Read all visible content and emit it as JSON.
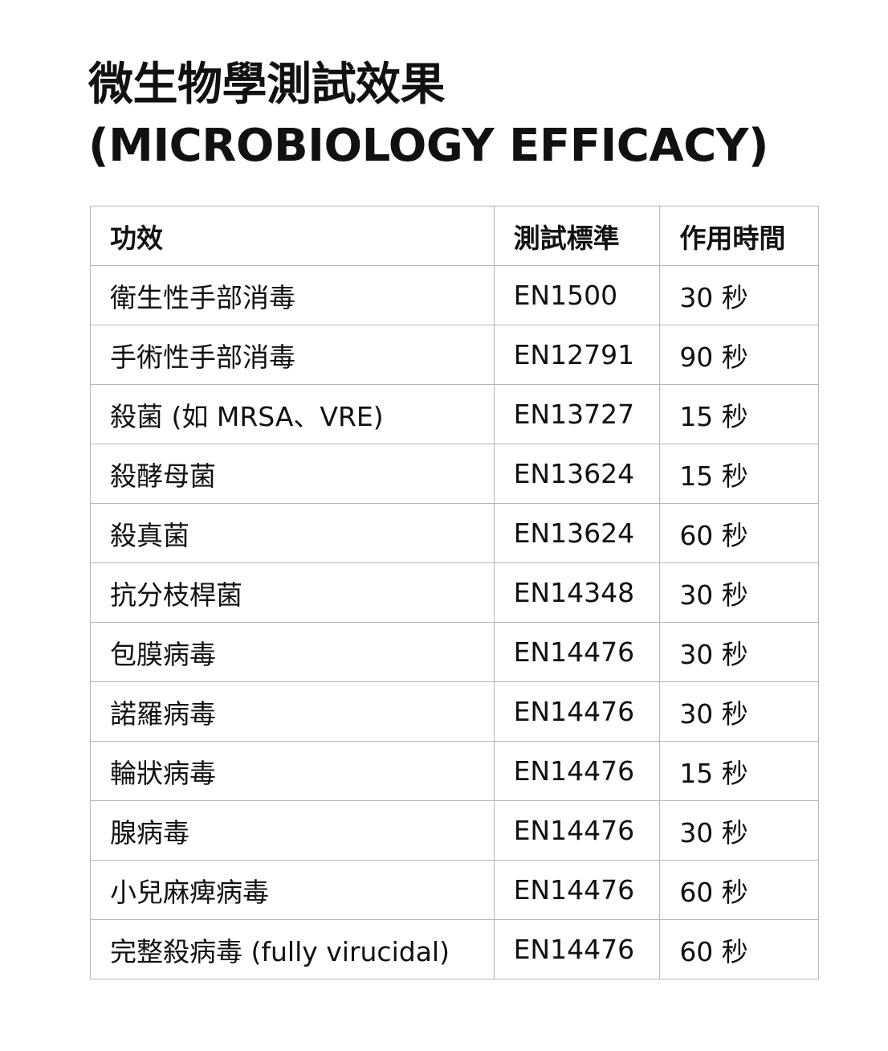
{
  "title": {
    "line1": "微生物學測試效果",
    "line2": "(MICROBIOLOGY EFFICACY)"
  },
  "table": {
    "headers": [
      "功效",
      "測試標準",
      "作用時間"
    ],
    "rows": [
      [
        "衛生性手部消毒",
        "EN1500",
        "30 秒"
      ],
      [
        "手術性手部消毒",
        "EN12791",
        "90 秒"
      ],
      [
        "殺菌 (如 MRSA、VRE)",
        "EN13727",
        "15 秒"
      ],
      [
        "殺酵母菌",
        "EN13624",
        "15 秒"
      ],
      [
        "殺真菌",
        "EN13624",
        "60 秒"
      ],
      [
        "抗分枝桿菌",
        "EN14348",
        "30 秒"
      ],
      [
        "包膜病毒",
        "EN14476",
        "30 秒"
      ],
      [
        "諾羅病毒",
        "EN14476",
        "30 秒"
      ],
      [
        "輪狀病毒",
        "EN14476",
        "15 秒"
      ],
      [
        "腺病毒",
        "EN14476",
        "30 秒"
      ],
      [
        "小兒麻痺病毒",
        "EN14476",
        "60 秒"
      ],
      [
        "完整殺病毒 (fully virucidal)",
        "EN14476",
        "60 秒"
      ]
    ]
  }
}
